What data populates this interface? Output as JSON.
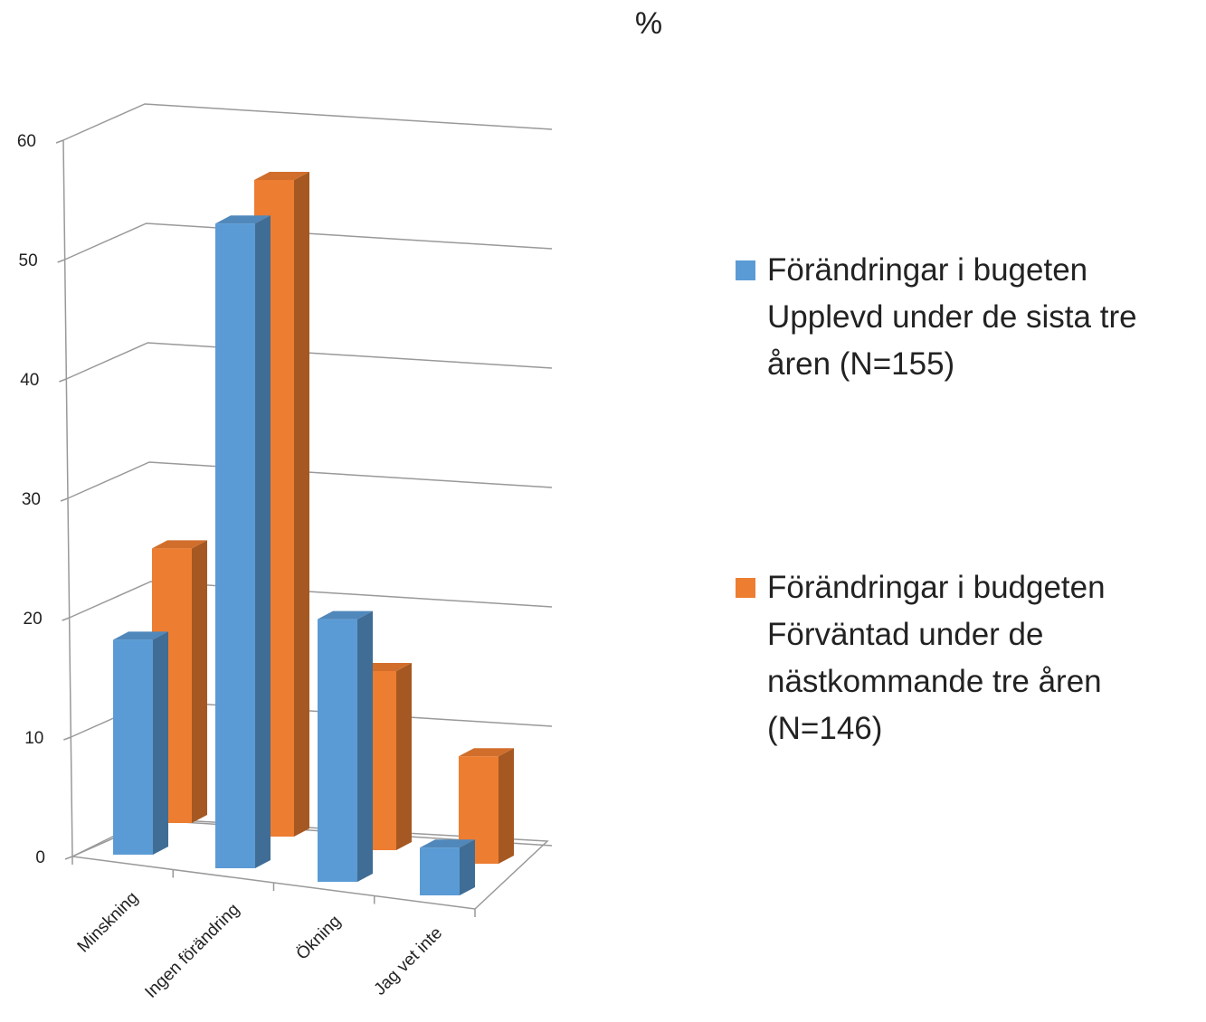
{
  "chart_data": {
    "type": "bar",
    "title": "%",
    "categories": [
      "Minskning",
      "Ingen förändring",
      "Ökning",
      "Jag vet inte"
    ],
    "series": [
      {
        "name": "Förändringar i bugeten Upplevd under de sista tre åren (N=155)",
        "color": "#5b9bd5",
        "values": [
          18,
          54,
          22,
          4
        ]
      },
      {
        "name": "Förändringar i budgeten Förväntad under de nästkommande tre åren (N=146)",
        "color": "#ed7d31",
        "values": [
          23,
          55,
          15,
          9
        ]
      }
    ],
    "ylim": [
      0,
      60
    ],
    "yticks": [
      0,
      10,
      20,
      30,
      40,
      50,
      60
    ],
    "grid": true,
    "legend": "right"
  }
}
